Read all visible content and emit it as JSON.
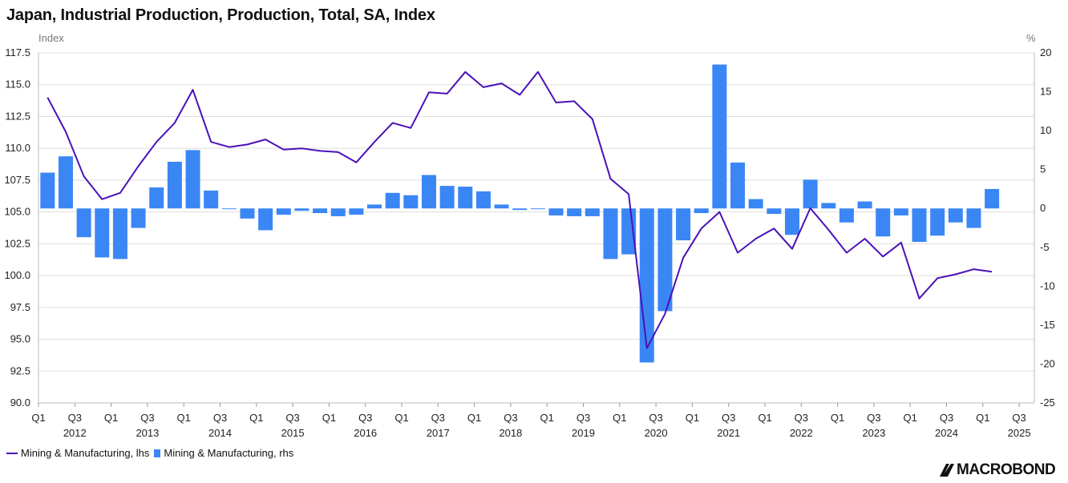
{
  "title": "Japan, Industrial Production, Production, Total, SA, Index",
  "left_unit": "Index",
  "right_unit": "%",
  "legend": {
    "line_label": "Mining & Manufacturing, lhs",
    "bar_label": "Mining & Manufacturing, rhs"
  },
  "logo_text": "MACROBOND",
  "colors": {
    "line": "#4a12b8",
    "bar": "#3a86f5",
    "grid": "#dddddd"
  },
  "chart_data": {
    "type": "bar",
    "left_axis": {
      "label": "Index",
      "ylim": [
        90.0,
        117.5
      ],
      "ticks": [
        "117.5",
        "115.0",
        "112.5",
        "110.0",
        "107.5",
        "105.0",
        "102.5",
        "100.0",
        "97.5",
        "95.0",
        "92.5",
        "90.0"
      ]
    },
    "right_axis": {
      "label": "%",
      "ylim": [
        -25,
        20
      ],
      "ticks": [
        "20",
        "15",
        "10",
        "5",
        "0",
        "-5",
        "-10",
        "-15",
        "-20",
        "-25"
      ]
    },
    "x_tick_labels": [
      "Q1",
      "Q3",
      "Q1",
      "Q3",
      "Q1",
      "Q3",
      "Q1",
      "Q3",
      "Q1",
      "Q3",
      "Q1",
      "Q3",
      "Q1",
      "Q3",
      "Q1",
      "Q3",
      "Q1",
      "Q3",
      "Q1",
      "Q3",
      "Q1",
      "Q3",
      "Q1",
      "Q3",
      "Q1",
      "Q3",
      "Q1",
      "Q3"
    ],
    "x_year_labels": [
      "2012",
      "2013",
      "2014",
      "2015",
      "2016",
      "2017",
      "2018",
      "2019",
      "2020",
      "2021",
      "2022",
      "2023",
      "2024",
      "2025"
    ],
    "categories": [
      "2012Q1",
      "2012Q2",
      "2012Q3",
      "2012Q4",
      "2013Q1",
      "2013Q2",
      "2013Q3",
      "2013Q4",
      "2014Q1",
      "2014Q2",
      "2014Q3",
      "2014Q4",
      "2015Q1",
      "2015Q2",
      "2015Q3",
      "2015Q4",
      "2016Q1",
      "2016Q2",
      "2016Q3",
      "2016Q4",
      "2017Q1",
      "2017Q2",
      "2017Q3",
      "2017Q4",
      "2018Q1",
      "2018Q2",
      "2018Q3",
      "2018Q4",
      "2019Q1",
      "2019Q2",
      "2019Q3",
      "2019Q4",
      "2020Q1",
      "2020Q2",
      "2020Q3",
      "2020Q4",
      "2021Q1",
      "2021Q2",
      "2021Q3",
      "2021Q4",
      "2022Q1",
      "2022Q2",
      "2022Q3",
      "2022Q4",
      "2023Q1",
      "2023Q2",
      "2023Q3",
      "2023Q4",
      "2024Q1",
      "2024Q2",
      "2024Q3",
      "2024Q4",
      "2025Q1"
    ],
    "series": [
      {
        "name": "Mining & Manufacturing, lhs",
        "type": "line",
        "axis": "left",
        "values": [
          114.0,
          111.3,
          107.8,
          106.0,
          106.5,
          108.6,
          110.5,
          112.0,
          114.6,
          110.5,
          110.1,
          110.3,
          110.7,
          109.9,
          110.0,
          109.8,
          109.7,
          108.9,
          110.5,
          112.0,
          111.6,
          114.4,
          114.3,
          116.0,
          114.8,
          115.1,
          114.2,
          116.0,
          113.6,
          113.7,
          112.3,
          107.6,
          106.4,
          94.3,
          97.0,
          101.4,
          103.7,
          105.0,
          101.8,
          102.9,
          103.7,
          102.1,
          105.3,
          103.6,
          101.8,
          102.9,
          101.5,
          102.6,
          98.2,
          99.8,
          100.1,
          100.5,
          100.3
        ]
      },
      {
        "name": "Mining & Manufacturing, rhs",
        "type": "bar",
        "axis": "right",
        "values": [
          4.6,
          6.7,
          -3.7,
          -6.3,
          -6.5,
          -2.5,
          2.7,
          6.0,
          7.5,
          2.3,
          -0.1,
          -1.3,
          -2.8,
          -0.8,
          -0.3,
          -0.6,
          -1.0,
          -0.8,
          0.5,
          2.0,
          1.7,
          4.3,
          2.9,
          2.8,
          2.2,
          0.5,
          -0.2,
          -0.1,
          -0.9,
          -1.0,
          -1.0,
          -6.5,
          -5.9,
          -19.8,
          -13.2,
          -4.1,
          -0.6,
          18.5,
          5.9,
          1.2,
          -0.7,
          -3.4,
          3.7,
          0.7,
          -1.8,
          0.9,
          -3.6,
          -0.9,
          -4.3,
          -3.5,
          -1.8,
          -2.5,
          2.5
        ]
      }
    ]
  }
}
